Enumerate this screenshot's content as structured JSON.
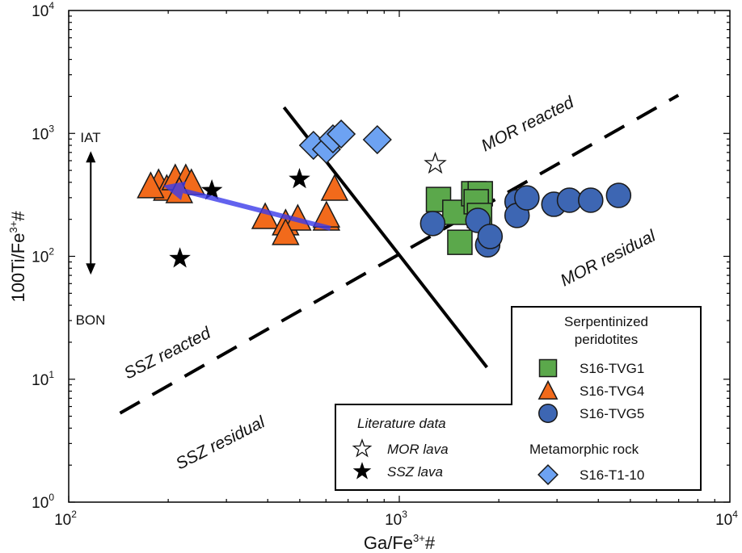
{
  "chart_data": {
    "type": "scatter",
    "xlabel": {
      "main": "Ga/Fe",
      "sup": "3+",
      "tail": "#"
    },
    "ylabel": {
      "main": "100Ti/Fe",
      "sup": "3+",
      "tail": "#"
    },
    "xscale": "log",
    "yscale": "log",
    "xlim": [
      100,
      10000
    ],
    "ylim": [
      1,
      10000
    ],
    "xticks": [
      {
        "base": "10",
        "exp": "2",
        "value": 100
      },
      {
        "base": "10",
        "exp": "3",
        "value": 1000
      },
      {
        "base": "10",
        "exp": "4",
        "value": 10000
      }
    ],
    "yticks": [
      {
        "base": "10",
        "exp": "0",
        "value": 1
      },
      {
        "base": "10",
        "exp": "1",
        "value": 10
      },
      {
        "base": "10",
        "exp": "2",
        "value": 100
      },
      {
        "base": "10",
        "exp": "3",
        "value": 1000
      },
      {
        "base": "10",
        "exp": "4",
        "value": 10000
      }
    ],
    "series": [
      {
        "name": "S16-TVG1",
        "marker": "square",
        "color": "#5ba84b",
        "points": [
          [
            1314,
            290
          ],
          [
            1473,
            228
          ],
          [
            1680,
            323
          ],
          [
            1758,
            323
          ],
          [
            1709,
            278
          ],
          [
            1525,
            130
          ],
          [
            1749,
            215
          ]
        ]
      },
      {
        "name": "S16-TVG4",
        "marker": "triangle",
        "color": "#f26a1b",
        "points": [
          [
            187,
            387
          ],
          [
            198,
            348
          ],
          [
            210,
            424
          ],
          [
            226,
            424
          ],
          [
            235,
            387
          ],
          [
            216,
            333
          ],
          [
            177,
            365
          ],
          [
            393,
            205
          ],
          [
            453,
            182
          ],
          [
            493,
            199
          ],
          [
            453,
            152
          ],
          [
            602,
            199
          ],
          [
            602,
            211
          ],
          [
            637,
            348
          ]
        ]
      },
      {
        "name": "S16-TVG5",
        "marker": "circle",
        "color": "#3d66b3",
        "points": [
          [
            1262,
            185
          ],
          [
            1729,
            196
          ],
          [
            1851,
            124
          ],
          [
            1882,
            145
          ],
          [
            2271,
            278
          ],
          [
            2271,
            215
          ],
          [
            2432,
            299
          ],
          [
            2935,
            265
          ],
          [
            3272,
            286
          ],
          [
            3793,
            286
          ],
          [
            4607,
            313
          ]
        ]
      },
      {
        "name": "S16-T1-10",
        "marker": "diamond",
        "color": "#6da2f2",
        "points": [
          [
            550,
            800
          ],
          [
            602,
            742
          ],
          [
            630,
            903
          ],
          [
            667,
            988
          ],
          [
            858,
            889
          ]
        ]
      },
      {
        "name": "MOR lava",
        "marker": "star-open",
        "color": "#ffffff",
        "points": [
          [
            1285,
            565
          ]
        ]
      },
      {
        "name": "SSZ lava",
        "marker": "star-filled",
        "color": "#000000",
        "points": [
          [
            217,
            96
          ],
          [
            271,
            343
          ],
          [
            499,
            424
          ]
        ]
      }
    ],
    "lines": [
      {
        "name": "solid-boundary",
        "style": "solid",
        "from": [
          448,
          1629
        ],
        "to": [
          1841,
          12.5
        ]
      },
      {
        "name": "dashed-boundary",
        "style": "dashed",
        "from": [
          143,
          5.3
        ],
        "to": [
          6984,
          2044
        ]
      }
    ],
    "arrow": {
      "color": "#3b3bea",
      "from": [
        619,
        169
      ],
      "to": [
        193,
        376
      ]
    },
    "iat_bon_arrow": {
      "x": 116.6,
      "top": 1000,
      "bottom": 45,
      "top_label": "IAT",
      "bottom_label": "BON"
    },
    "region_labels": [
      {
        "text": "MOR reacted",
        "at": [
          1650,
          1100
        ]
      },
      {
        "text": "MOR residual",
        "at": [
          3400,
          110
        ]
      },
      {
        "text": "SSZ reacted",
        "at": [
          165,
          9
        ]
      },
      {
        "text": "SSZ residual",
        "at": [
          250,
          1.5
        ]
      }
    ],
    "legend": {
      "placement": "bottom-right",
      "group1_title_line1": "Serpentinized",
      "group1_title_line2": "peridotites",
      "group2_title": "Metamorphic rock",
      "group3_title": "Literature data",
      "entries": {
        "tvg1": "S16-TVG1",
        "tvg4": "S16-TVG4",
        "tvg5": "S16-TVG5",
        "t110": "S16-T1-10",
        "mor": "MOR lava",
        "ssz": "SSZ lava"
      }
    }
  }
}
